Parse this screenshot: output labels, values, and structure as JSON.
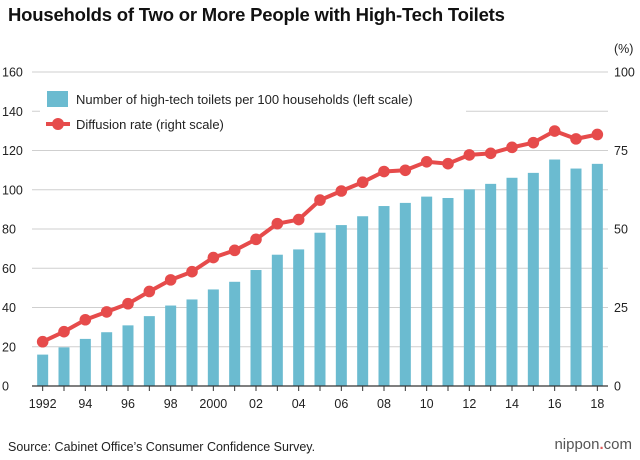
{
  "chart_data": {
    "type": "bar+line",
    "title": "Households of Two or More People with High-Tech Toilets",
    "source": "Source: Cabinet Office’s Consumer Confidence Survey.",
    "logo_prefix": "nippon",
    "logo_dot": ".",
    "logo_suffix": "com",
    "x_tick_labels": [
      "1992",
      "94",
      "96",
      "98",
      "2000",
      "02",
      "04",
      "06",
      "08",
      "10",
      "12",
      "14",
      "16",
      "18"
    ],
    "years": [
      1992,
      1993,
      1994,
      1995,
      1996,
      1997,
      1998,
      1999,
      2000,
      2001,
      2002,
      2003,
      2004,
      2005,
      2006,
      2007,
      2008,
      2009,
      2010,
      2011,
      2012,
      2013,
      2014,
      2015,
      2016,
      2017,
      2018
    ],
    "left_axis": {
      "ylim": [
        0,
        160
      ],
      "ticks": [
        0,
        20,
        40,
        60,
        80,
        100,
        120,
        140,
        160
      ]
    },
    "right_axis": {
      "unit": "(%)",
      "ylim": [
        0,
        100
      ],
      "ticks": [
        0,
        25,
        50,
        75,
        100
      ]
    },
    "legend": {
      "bar_label": "Number of high-tech toilets per 100 households (left scale)",
      "line_label": "Diffusion rate (right scale)"
    },
    "bar_color": "#6bbbd0",
    "line_color": "#e64b4b",
    "series": [
      {
        "kind": "bar",
        "axis": "left",
        "values": [
          16.0,
          19.7,
          24.0,
          27.4,
          30.9,
          35.6,
          41.0,
          44.1,
          49.2,
          53.1,
          59.1,
          66.9,
          69.6,
          78.1,
          82.0,
          86.5,
          91.7,
          93.3,
          96.5,
          95.8,
          100.2,
          103.0,
          106.1,
          108.6,
          115.4,
          110.8,
          113.2
        ]
      },
      {
        "kind": "line",
        "axis": "right",
        "values": [
          14.1,
          17.3,
          21.1,
          23.6,
          26.2,
          30.1,
          33.8,
          36.4,
          40.9,
          43.2,
          46.7,
          51.7,
          53.0,
          59.2,
          62.1,
          64.9,
          68.3,
          68.7,
          71.4,
          70.8,
          73.6,
          74.1,
          76.0,
          77.5,
          81.2,
          78.7,
          80.1
        ]
      }
    ]
  }
}
